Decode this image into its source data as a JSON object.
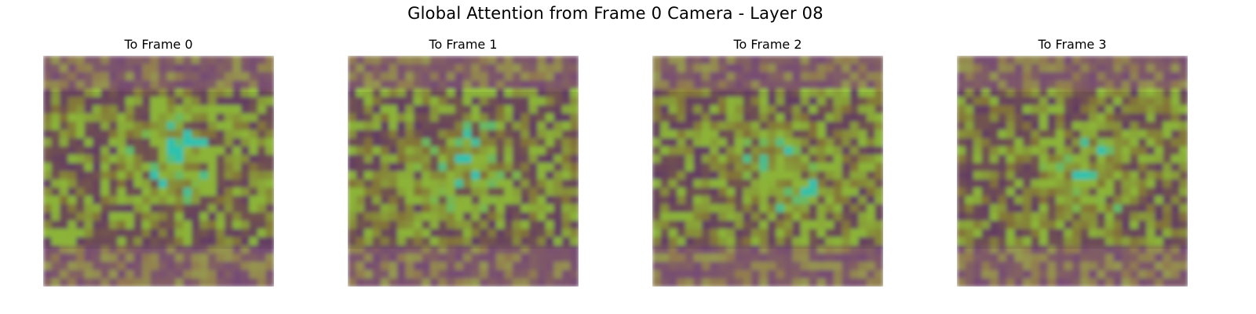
{
  "figure": {
    "title": "Global Attention from Frame 0 Camera - Layer 08"
  },
  "panels": [
    {
      "title": "To Frame 0"
    },
    {
      "title": "To Frame 1"
    },
    {
      "title": "To Frame 2"
    },
    {
      "title": "To Frame 3"
    }
  ],
  "colors": {
    "low_attention": "#6b3f6b",
    "mid_attention": "#8f7a3a",
    "high_attention": "#9ac93a",
    "peak_attention": "#2fd9c2",
    "background": "#ffffff"
  }
}
